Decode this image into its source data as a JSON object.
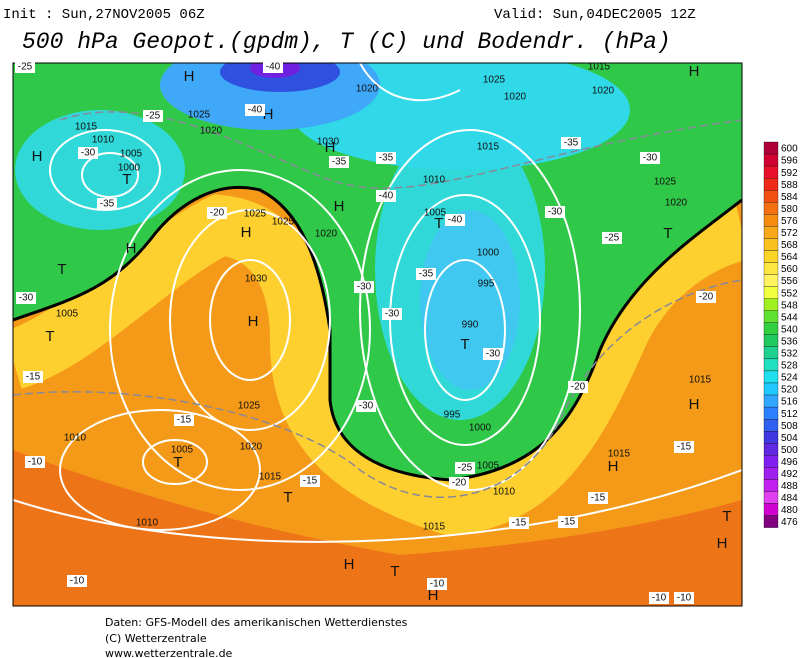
{
  "header": {
    "init": "Init : Sun,27NOV2005 06Z",
    "valid": "Valid: Sun,04DEC2005 12Z",
    "title": "500 hPa Geopot.(gpdm), T (C) und Bodendr. (hPa)"
  },
  "colorbar": {
    "levels": [
      600,
      596,
      592,
      588,
      584,
      580,
      576,
      572,
      568,
      564,
      560,
      556,
      552,
      548,
      544,
      540,
      536,
      532,
      528,
      524,
      520,
      516,
      512,
      508,
      504,
      500,
      496,
      492,
      488,
      484,
      480,
      476
    ],
    "colors": [
      "#b0003a",
      "#d00030",
      "#e8102a",
      "#f02818",
      "#f25010",
      "#f47010",
      "#f58c10",
      "#f8a818",
      "#fac020",
      "#fcd428",
      "#fee640",
      "#fff460",
      "#f0ff40",
      "#a0f020",
      "#60e030",
      "#30d040",
      "#20c860",
      "#20d090",
      "#20e0c0",
      "#20e0f0",
      "#20c8ff",
      "#30a8ff",
      "#2a80ff",
      "#3060f0",
      "#4038e0",
      "#6028e0",
      "#8020f0",
      "#a020f0",
      "#c020f0",
      "#e040f0",
      "#d000d0",
      "#800080"
    ]
  },
  "map": {
    "highs": [
      "H",
      "H",
      "H",
      "H",
      "H",
      "H",
      "H",
      "H",
      "H",
      "H",
      "H",
      "H",
      "H",
      "H"
    ],
    "lows": [
      "T",
      "T",
      "T",
      "T",
      "T",
      "T",
      "T",
      "T",
      "T",
      "T"
    ],
    "isobar_labels": [
      1020,
      1025,
      1020,
      1015,
      1020,
      1015,
      1010,
      1005,
      1000,
      1025,
      1020,
      1030,
      1010,
      1005,
      1025,
      1025,
      1020,
      1000,
      995,
      990,
      1030,
      1005,
      1025,
      1010,
      1005,
      1020,
      1015,
      995,
      1000,
      1005,
      1010,
      1015,
      1010,
      1015,
      1015,
      1025,
      1020,
      1015
    ],
    "temperature_labels": [
      -25,
      -40,
      -25,
      -30,
      -35,
      -20,
      -40,
      -35,
      -35,
      -40,
      -40,
      -35,
      -30,
      -30,
      -30,
      -25,
      -30,
      -35,
      -30,
      -20,
      -20,
      -15,
      -30,
      -15,
      -15,
      -25,
      -20,
      -15,
      -15,
      -15,
      -15,
      -10,
      -10,
      -10,
      -10,
      -10,
      -30
    ]
  },
  "footer": {
    "line1": "Daten: GFS-Modell des amerikanischen Wetterdienstes",
    "line2": "(C) Wetterzentrale",
    "line3": "www.wetterzentrale.de"
  }
}
